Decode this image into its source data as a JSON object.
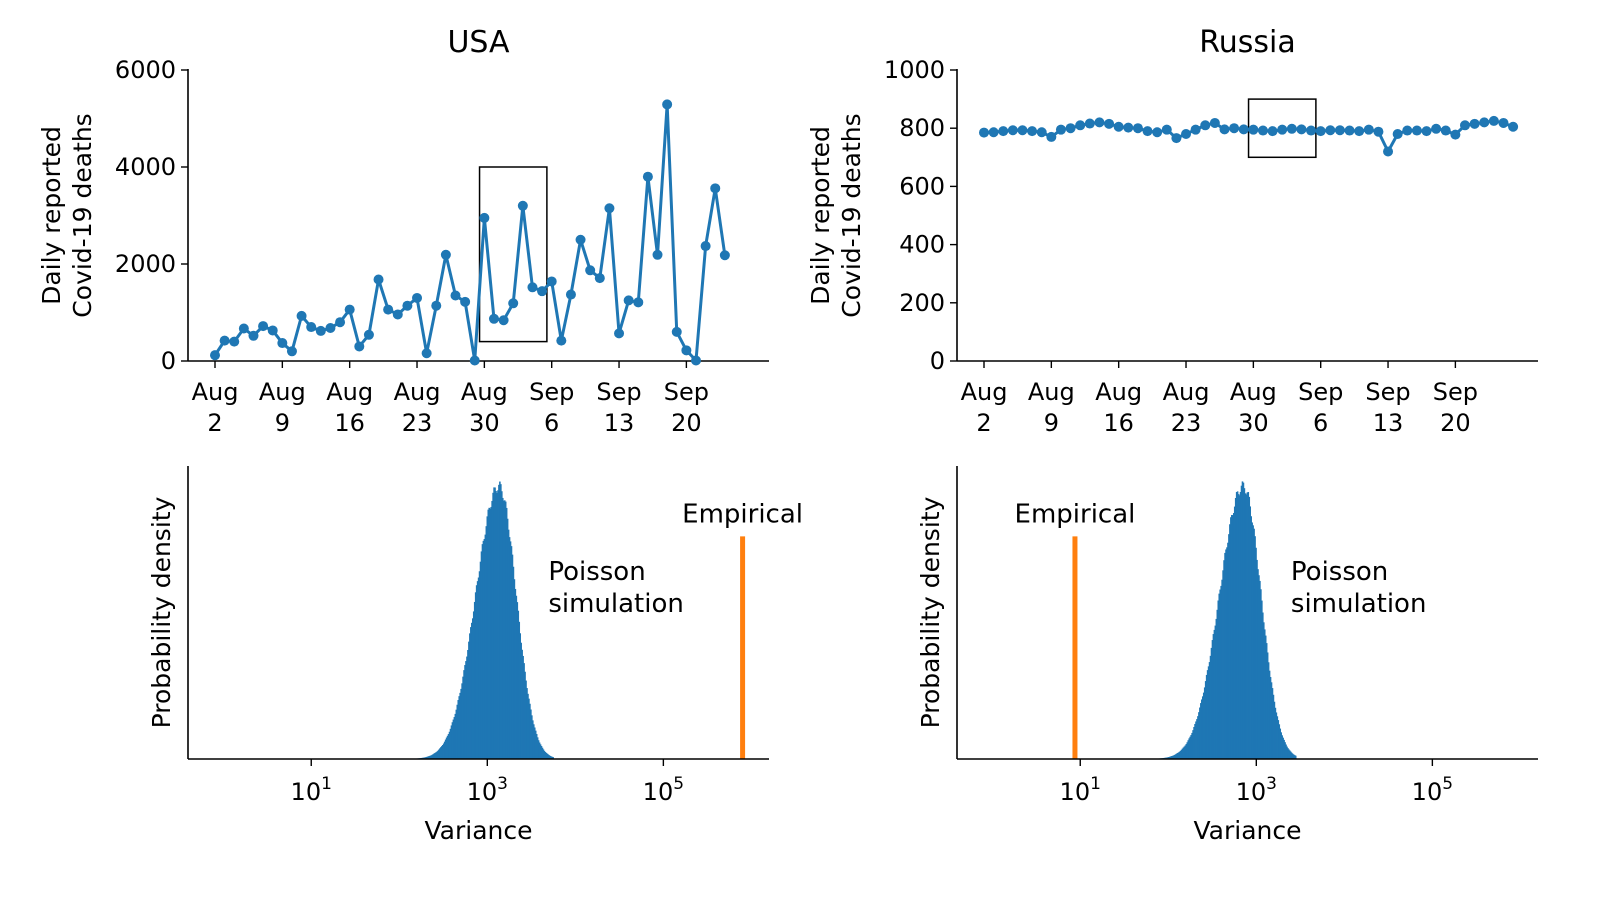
{
  "colors": {
    "series": "#1f77b4",
    "empirical": "#ff7f0e",
    "axes": "#000000",
    "highlight_box": "#000000"
  },
  "chart_data": [
    {
      "id": "usa-timeseries",
      "type": "line",
      "title": "USA",
      "xlabel": "",
      "ylabel": [
        "Daily reported",
        "Covid-19 deaths"
      ],
      "xlim": [
        0,
        55
      ],
      "ylim": [
        0,
        6000
      ],
      "xticks": [
        0,
        7,
        14,
        21,
        28,
        35,
        42,
        49
      ],
      "xtick_labels": [
        [
          "Aug",
          "2"
        ],
        [
          "Aug",
          "9"
        ],
        [
          "Aug",
          "16"
        ],
        [
          "Aug",
          "23"
        ],
        [
          "Aug",
          "30"
        ],
        [
          "Sep",
          "6"
        ],
        [
          "Sep",
          "13"
        ],
        [
          "Sep",
          "20"
        ]
      ],
      "yticks": [
        0,
        2000,
        4000,
        6000
      ],
      "ytick_labels": [
        "0",
        "2000",
        "4000",
        "6000"
      ],
      "highlight_box": {
        "x_range": [
          27.5,
          34.5
        ],
        "y_range": [
          400,
          4000
        ]
      },
      "series": [
        {
          "marker": "circle",
          "x": [
            0,
            1,
            2,
            3,
            4,
            5,
            6,
            7,
            8,
            9,
            10,
            11,
            12,
            13,
            14,
            15,
            16,
            17,
            18,
            19,
            20,
            21,
            22,
            23,
            24,
            25,
            26,
            27,
            28,
            29,
            30,
            31,
            32,
            33,
            34,
            35,
            36,
            37,
            38,
            39,
            40,
            41,
            42,
            43,
            44,
            45,
            46,
            47,
            48,
            49,
            50,
            51,
            52,
            53
          ],
          "y": [
            120,
            420,
            400,
            670,
            520,
            720,
            630,
            370,
            200,
            930,
            700,
            620,
            680,
            800,
            1060,
            300,
            540,
            1680,
            1060,
            960,
            1140,
            1300,
            160,
            1140,
            2190,
            1350,
            1220,
            10,
            2950,
            870,
            840,
            1190,
            3200,
            1520,
            1440,
            1640,
            420,
            1370,
            2500,
            1870,
            1710,
            3150,
            570,
            1250,
            1210,
            3800,
            2190,
            5290,
            600,
            220,
            10,
            2370,
            3560,
            2180
          ]
        }
      ]
    },
    {
      "id": "russia-timeseries",
      "type": "line",
      "title": "Russia",
      "xlabel": "",
      "ylabel": [
        "Daily reported",
        "Covid-19 deaths"
      ],
      "xlim": [
        0,
        55
      ],
      "ylim": [
        0,
        1000
      ],
      "xticks": [
        0,
        7,
        14,
        21,
        28,
        35,
        42,
        49
      ],
      "xtick_labels": [
        [
          "Aug",
          "2"
        ],
        [
          "Aug",
          "9"
        ],
        [
          "Aug",
          "16"
        ],
        [
          "Aug",
          "23"
        ],
        [
          "Aug",
          "30"
        ],
        [
          "Sep",
          "6"
        ],
        [
          "Sep",
          "13"
        ],
        [
          "Sep",
          "20"
        ]
      ],
      "yticks": [
        0,
        200,
        400,
        600,
        800,
        1000
      ],
      "ytick_labels": [
        "0",
        "200",
        "400",
        "600",
        "800",
        "1000"
      ],
      "highlight_box": {
        "x_range": [
          27.5,
          34.5
        ],
        "y_range": [
          700,
          900
        ]
      },
      "series": [
        {
          "marker": "circle",
          "x": [
            0,
            1,
            2,
            3,
            4,
            5,
            6,
            7,
            8,
            9,
            10,
            11,
            12,
            13,
            14,
            15,
            16,
            17,
            18,
            19,
            20,
            21,
            22,
            23,
            24,
            25,
            26,
            27,
            28,
            29,
            30,
            31,
            32,
            33,
            34,
            35,
            36,
            37,
            38,
            39,
            40,
            41,
            42,
            43,
            44,
            45,
            46,
            47,
            48,
            49,
            50,
            51,
            52,
            53,
            54,
            55
          ],
          "y": [
            785,
            786,
            790,
            793,
            793,
            790,
            786,
            770,
            795,
            800,
            810,
            816,
            820,
            815,
            805,
            802,
            800,
            790,
            786,
            795,
            766,
            780,
            795,
            810,
            818,
            796,
            800,
            796,
            795,
            792,
            790,
            795,
            798,
            796,
            792,
            790,
            793,
            793,
            792,
            790,
            795,
            788,
            720,
            780,
            792,
            792,
            790,
            798,
            792,
            778,
            810,
            815,
            820,
            825,
            818,
            805
          ]
        }
      ]
    },
    {
      "id": "usa-histogram",
      "type": "histogram",
      "xlabel": "Variance",
      "ylabel": "Probability density",
      "xscale": "log",
      "xlim_log10": [
        -0.4,
        6.2
      ],
      "xticks_log10": [
        1,
        3,
        5
      ],
      "xtick_labels": [
        {
          "base": "10",
          "exp": "1"
        },
        {
          "base": "10",
          "exp": "3"
        },
        {
          "base": "10",
          "exp": "5"
        }
      ],
      "distribution": {
        "name": "Poisson simulation",
        "center_log10": 3.13,
        "sigma_log10": 0.195,
        "skew": -1.0,
        "support_log10": [
          2.1,
          3.75
        ]
      },
      "empirical": {
        "name": "Empirical",
        "log10_value": 5.9,
        "relative_height": 0.76
      },
      "annotations": {
        "distribution_label": [
          "Poisson",
          "simulation"
        ],
        "empirical_label": "Empirical"
      }
    },
    {
      "id": "russia-histogram",
      "type": "histogram",
      "xlabel": "Variance",
      "ylabel": "Probability density",
      "xscale": "log",
      "xlim_log10": [
        -0.4,
        6.2
      ],
      "xticks_log10": [
        1,
        3,
        5
      ],
      "xtick_labels": [
        {
          "base": "10",
          "exp": "1"
        },
        {
          "base": "10",
          "exp": "3"
        },
        {
          "base": "10",
          "exp": "5"
        }
      ],
      "distribution": {
        "name": "Poisson simulation",
        "center_log10": 2.85,
        "sigma_log10": 0.2,
        "skew": -1.0,
        "support_log10": [
          1.8,
          3.45
        ]
      },
      "empirical": {
        "name": "Empirical",
        "log10_value": 0.94,
        "relative_height": 0.76
      },
      "annotations": {
        "distribution_label": [
          "Poisson",
          "simulation"
        ],
        "empirical_label": "Empirical"
      }
    }
  ]
}
